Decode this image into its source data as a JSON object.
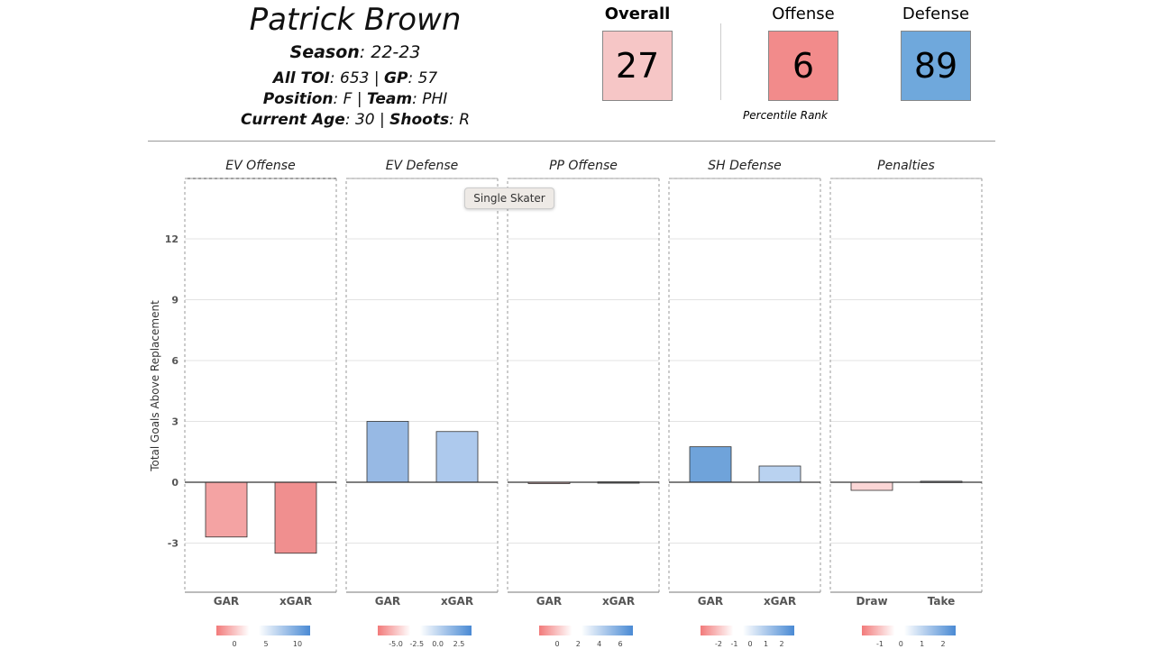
{
  "player": {
    "name": "Patrick Brown",
    "season_label": "Season",
    "season": "22-23",
    "toi_label": "All TOI",
    "toi": "653",
    "gp_label": "GP",
    "gp": "57",
    "position_label": "Position",
    "position": "F",
    "team_label": "Team",
    "team": "PHI",
    "age_label": "Current Age",
    "age": "30",
    "shoots_label": "Shoots",
    "shoots": "R"
  },
  "ranks": {
    "overall_label": "Overall",
    "overall": "27",
    "offense_label": "Offense",
    "offense": "6",
    "defense_label": "Defense",
    "defense": "89",
    "note": "Percentile Rank",
    "colors": {
      "overall": "#f6c6c6",
      "offense": "#f28b8b",
      "defense": "#6fa8dc"
    }
  },
  "tooltip": "Single Skater",
  "chart_data": {
    "type": "bar",
    "ylabel": "Total Goals Above Replacement",
    "ylim": [
      -5,
      15
    ],
    "yticks": [
      -3,
      0,
      3,
      6,
      9,
      12
    ],
    "grid": true,
    "panels": [
      {
        "title": "EV Offense",
        "categories": [
          "GAR",
          "xGAR"
        ],
        "values": [
          -2.7,
          -3.5
        ],
        "colors": [
          "#f4a3a3",
          "#f08f8f"
        ],
        "legend_ticks": [
          "0",
          "5",
          "10"
        ]
      },
      {
        "title": "EV Defense",
        "categories": [
          "GAR",
          "xGAR"
        ],
        "values": [
          3.0,
          2.5
        ],
        "colors": [
          "#97b9e4",
          "#adc9ed"
        ],
        "legend_ticks": [
          "-5.0",
          "-2.5",
          "0.0",
          "2.5"
        ]
      },
      {
        "title": "PP Offense",
        "categories": [
          "GAR",
          "xGAR"
        ],
        "values": [
          -0.05,
          0.02
        ],
        "colors": [
          "#f4c0c0",
          "#dce8f7"
        ],
        "legend_ticks": [
          "0",
          "2",
          "4",
          "6"
        ]
      },
      {
        "title": "SH Defense",
        "categories": [
          "GAR",
          "xGAR"
        ],
        "values": [
          1.75,
          0.8
        ],
        "colors": [
          "#6fa3da",
          "#b9d2f0"
        ],
        "legend_ticks": [
          "-2",
          "-1",
          "0",
          "1",
          "2"
        ]
      },
      {
        "title": "Penalties",
        "categories": [
          "Draw",
          "Take"
        ],
        "values": [
          -0.4,
          0.05
        ],
        "colors": [
          "#fbd6d6",
          "#dce8f7"
        ],
        "legend_ticks": [
          "-1",
          "0",
          "1",
          "2"
        ]
      }
    ]
  }
}
